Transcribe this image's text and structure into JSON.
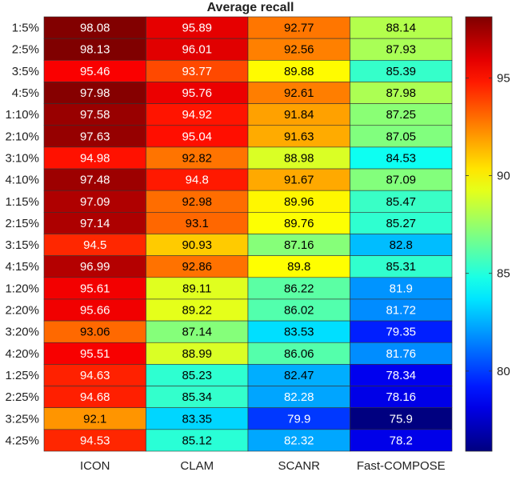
{
  "chart_data": {
    "type": "heatmap",
    "title": "Average recall",
    "columns": [
      "ICON",
      "CLAM",
      "SCANR",
      "Fast-COMPOSE"
    ],
    "rows": [
      "1:5%",
      "2:5%",
      "3:5%",
      "4:5%",
      "1:10%",
      "2:10%",
      "3:10%",
      "4:10%",
      "1:15%",
      "2:15%",
      "3:15%",
      "4:15%",
      "1:20%",
      "2:20%",
      "3:20%",
      "4:20%",
      "1:25%",
      "2:25%",
      "3:25%",
      "4:25%"
    ],
    "values": [
      [
        "98.08",
        "95.89",
        "92.77",
        "88.14"
      ],
      [
        "98.13",
        "96.01",
        "92.56",
        "87.93"
      ],
      [
        "95.46",
        "93.77",
        "89.88",
        "85.39"
      ],
      [
        "97.98",
        "95.76",
        "92.61",
        "87.98"
      ],
      [
        "97.58",
        "94.92",
        "91.84",
        "87.25"
      ],
      [
        "97.63",
        "95.04",
        "91.63",
        "87.05"
      ],
      [
        "94.98",
        "92.82",
        "88.98",
        "84.53"
      ],
      [
        "97.48",
        "94.8",
        "91.67",
        "87.09"
      ],
      [
        "97.09",
        "92.98",
        "89.96",
        "85.47"
      ],
      [
        "97.14",
        "93.1",
        "89.76",
        "85.27"
      ],
      [
        "94.5",
        "90.93",
        "87.16",
        "82.8"
      ],
      [
        "96.99",
        "92.86",
        "89.8",
        "85.31"
      ],
      [
        "95.61",
        "89.11",
        "86.22",
        "81.9"
      ],
      [
        "95.66",
        "89.22",
        "86.02",
        "81.72"
      ],
      [
        "93.06",
        "87.14",
        "83.53",
        "79.35"
      ],
      [
        "95.51",
        "88.99",
        "86.06",
        "81.76"
      ],
      [
        "94.63",
        "85.23",
        "82.47",
        "78.34"
      ],
      [
        "94.68",
        "85.34",
        "82.28",
        "78.16"
      ],
      [
        "92.1",
        "83.35",
        "79.9",
        "75.9"
      ],
      [
        "94.53",
        "85.12",
        "82.32",
        "78.2"
      ]
    ],
    "colorbar": {
      "colormap": "jet",
      "range": [
        75.9,
        98.13
      ],
      "ticks": [
        "80",
        "85",
        "90",
        "95"
      ]
    },
    "grid": false
  }
}
